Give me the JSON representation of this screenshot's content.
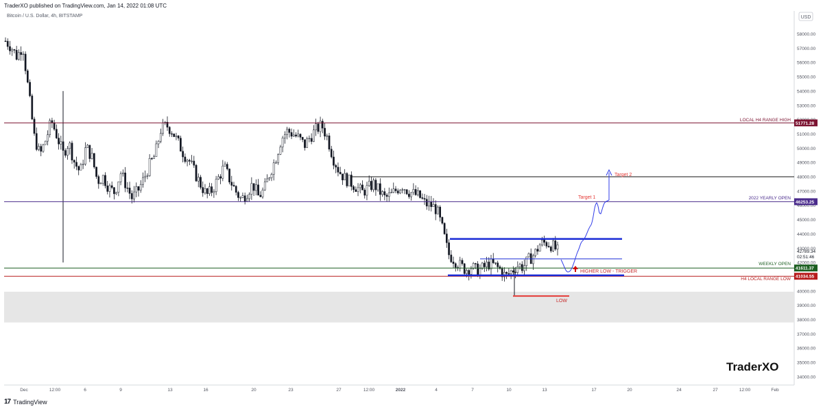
{
  "header": {
    "published": "TraderXO published on TradingView.com, Jan 14, 2022 01:08 UTC",
    "symbol": "Bitcoin / U.S. Dollar, 4h, BITSTAMP"
  },
  "footer": {
    "brand": "TradingView"
  },
  "currency_button": "USD",
  "watermark": "TraderXO",
  "price_readout": {
    "price": "42789.34",
    "countdown": "02:51:46"
  },
  "chart_data": {
    "type": "candlestick",
    "ylim": [
      33200,
      59500
    ],
    "y_ticks": [
      34000,
      35000,
      36000,
      37000,
      38000,
      39000,
      40000,
      41000,
      42000,
      43000,
      44000,
      45000,
      46000,
      47000,
      48000,
      49000,
      50000,
      51000,
      52000,
      53000,
      54000,
      55000,
      56000,
      57000,
      58000
    ],
    "y_tick_labels": [
      "34000.00",
      "35000.00",
      "36000.00",
      "37000.00",
      "38000.00",
      "39000.00",
      "40000.00",
      "41000.00",
      "42000.00",
      "43000.00",
      "44000.00",
      "45000.00",
      "46000.00",
      "47000.00",
      "48000.00",
      "49000.00",
      "50000.00",
      "51000.00",
      "52000.00",
      "53000.00",
      "54000.00",
      "55000.00",
      "56000.00",
      "57000.00",
      "58000.00"
    ],
    "x_ticks": [
      "Dec",
      "12:00",
      "6",
      "9",
      "13",
      "16",
      "20",
      "23",
      "27",
      "12:00",
      "2022",
      "4",
      "7",
      "10",
      "13",
      "17",
      "20",
      "24",
      "27",
      "12:00",
      "Feb"
    ],
    "levels": [
      {
        "label": "LOCAL H4 RANGE HIGH",
        "value": 51771.28,
        "value_label": "51771.28",
        "color": "#7b1230"
      },
      {
        "label": "2022 YEARLY OPEN",
        "value": 46253.25,
        "value_label": "46253.25",
        "color": "#4a2b8c"
      },
      {
        "label": "WEEKLY OPEN",
        "value": 41611.37,
        "value_label": "41611.37",
        "color": "#1b5e20"
      },
      {
        "label": "H4 LOCAL RANGE LOW",
        "value": 41034.55,
        "value_label": "41034.55",
        "color": "#b71c1c"
      }
    ],
    "horizontal_lines": [
      {
        "value": 48000,
        "color": "#111111"
      },
      {
        "value": 43650,
        "color": "#1a2bd6"
      },
      {
        "value": 41100,
        "color": "#1a2bd6"
      },
      {
        "value": 42250,
        "color": "#1a2bd6"
      },
      {
        "value": 39650,
        "color": "#e53935"
      }
    ],
    "zone": {
      "from": 37800,
      "to": 39950,
      "color": "#e6e6e6"
    },
    "annotations": [
      {
        "text": "Target 2",
        "color": "#e53935"
      },
      {
        "text": "Target 1",
        "color": "#e53935"
      },
      {
        "text": "HIGHER LOW - TRIGGER",
        "color": "#c62828"
      },
      {
        "text": "LOW",
        "color": "#c62828"
      }
    ],
    "last_price": 42789.34,
    "candle_path": [
      57500,
      57100,
      56400,
      57200,
      54000,
      50800,
      49500,
      50600,
      51900,
      50800,
      49600,
      50400,
      49000,
      48300,
      50100,
      49400,
      47700,
      48000,
      47200,
      46900,
      48300,
      47400,
      46500,
      47000,
      47800,
      48800,
      49500,
      51300,
      51600,
      51200,
      50400,
      49600,
      49100,
      48200,
      47400,
      46700,
      47100,
      47900,
      48700,
      47800,
      47000,
      46400,
      46900,
      47500,
      46600,
      47100,
      48300,
      49300,
      50700,
      51200,
      51000,
      50700,
      50200,
      50800,
      51300,
      51600,
      50700,
      49300,
      48400,
      47900,
      47600,
      47300,
      46900,
      47200,
      47500,
      47000,
      46500,
      46700,
      47100,
      47400,
      47000,
      46800,
      46600,
      46100,
      46000,
      45700,
      44300,
      42600,
      42200,
      41800,
      41500,
      41700,
      41400,
      41600,
      41900,
      41800,
      41500,
      41000,
      41400,
      41800,
      41700,
      42200,
      42600,
      43300,
      43400,
      43200,
      42800
    ]
  }
}
